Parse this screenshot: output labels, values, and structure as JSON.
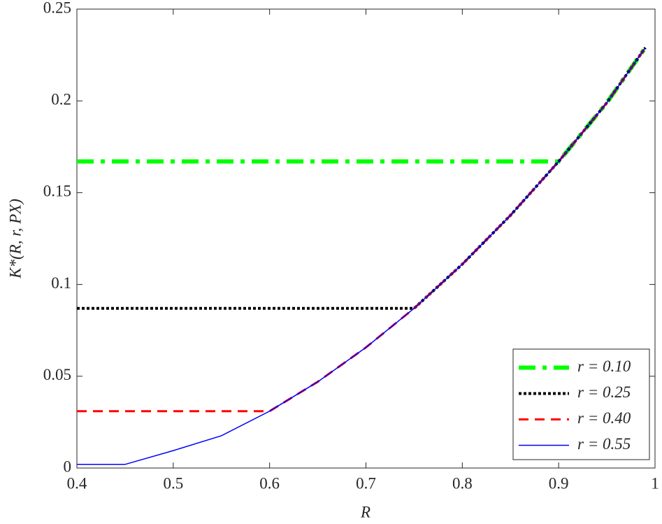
{
  "chart_data": {
    "type": "line",
    "xlabel": "R",
    "ylabel": "K*(R, r, PX)",
    "x": [
      0.4,
      0.45,
      0.5,
      0.55,
      0.6,
      0.65,
      0.7,
      0.75,
      0.8,
      0.85,
      0.9,
      0.95,
      0.99
    ],
    "series": [
      {
        "name": "r = 0.10",
        "color": "#00ff00",
        "style": "dashdot",
        "width": 6,
        "values": [
          0.167,
          0.167,
          0.167,
          0.167,
          0.167,
          0.167,
          0.167,
          0.167,
          0.167,
          0.167,
          0.167,
          0.199,
          0.229
        ]
      },
      {
        "name": "r = 0.25",
        "color": "#000000",
        "style": "dotted",
        "width": 4,
        "values": [
          0.087,
          0.087,
          0.087,
          0.087,
          0.087,
          0.087,
          0.087,
          0.087,
          0.111,
          0.1377,
          0.167,
          0.199,
          0.229
        ]
      },
      {
        "name": "r = 0.40",
        "color": "#ff0000",
        "style": "dashed",
        "width": 3,
        "values": [
          0.031,
          0.031,
          0.031,
          0.031,
          0.031,
          0.047,
          0.0657,
          0.087,
          0.111,
          0.1377,
          0.167,
          0.199,
          0.229
        ]
      },
      {
        "name": "r = 0.55",
        "color": "#0000ff",
        "style": "solid",
        "width": 1.5,
        "values": [
          0.002,
          0.002,
          0.0095,
          0.0176,
          0.031,
          0.047,
          0.0657,
          0.087,
          0.111,
          0.1377,
          0.167,
          0.199,
          0.229
        ]
      }
    ],
    "xlim": [
      0.4,
      1
    ],
    "ylim": [
      0,
      0.25
    ],
    "xticks": [
      0.4,
      0.5,
      0.6,
      0.7,
      0.8,
      0.9,
      1
    ],
    "yticks": [
      0,
      0.05,
      0.1,
      0.15,
      0.2,
      0.25
    ],
    "grid": false,
    "legend": "lower right"
  }
}
